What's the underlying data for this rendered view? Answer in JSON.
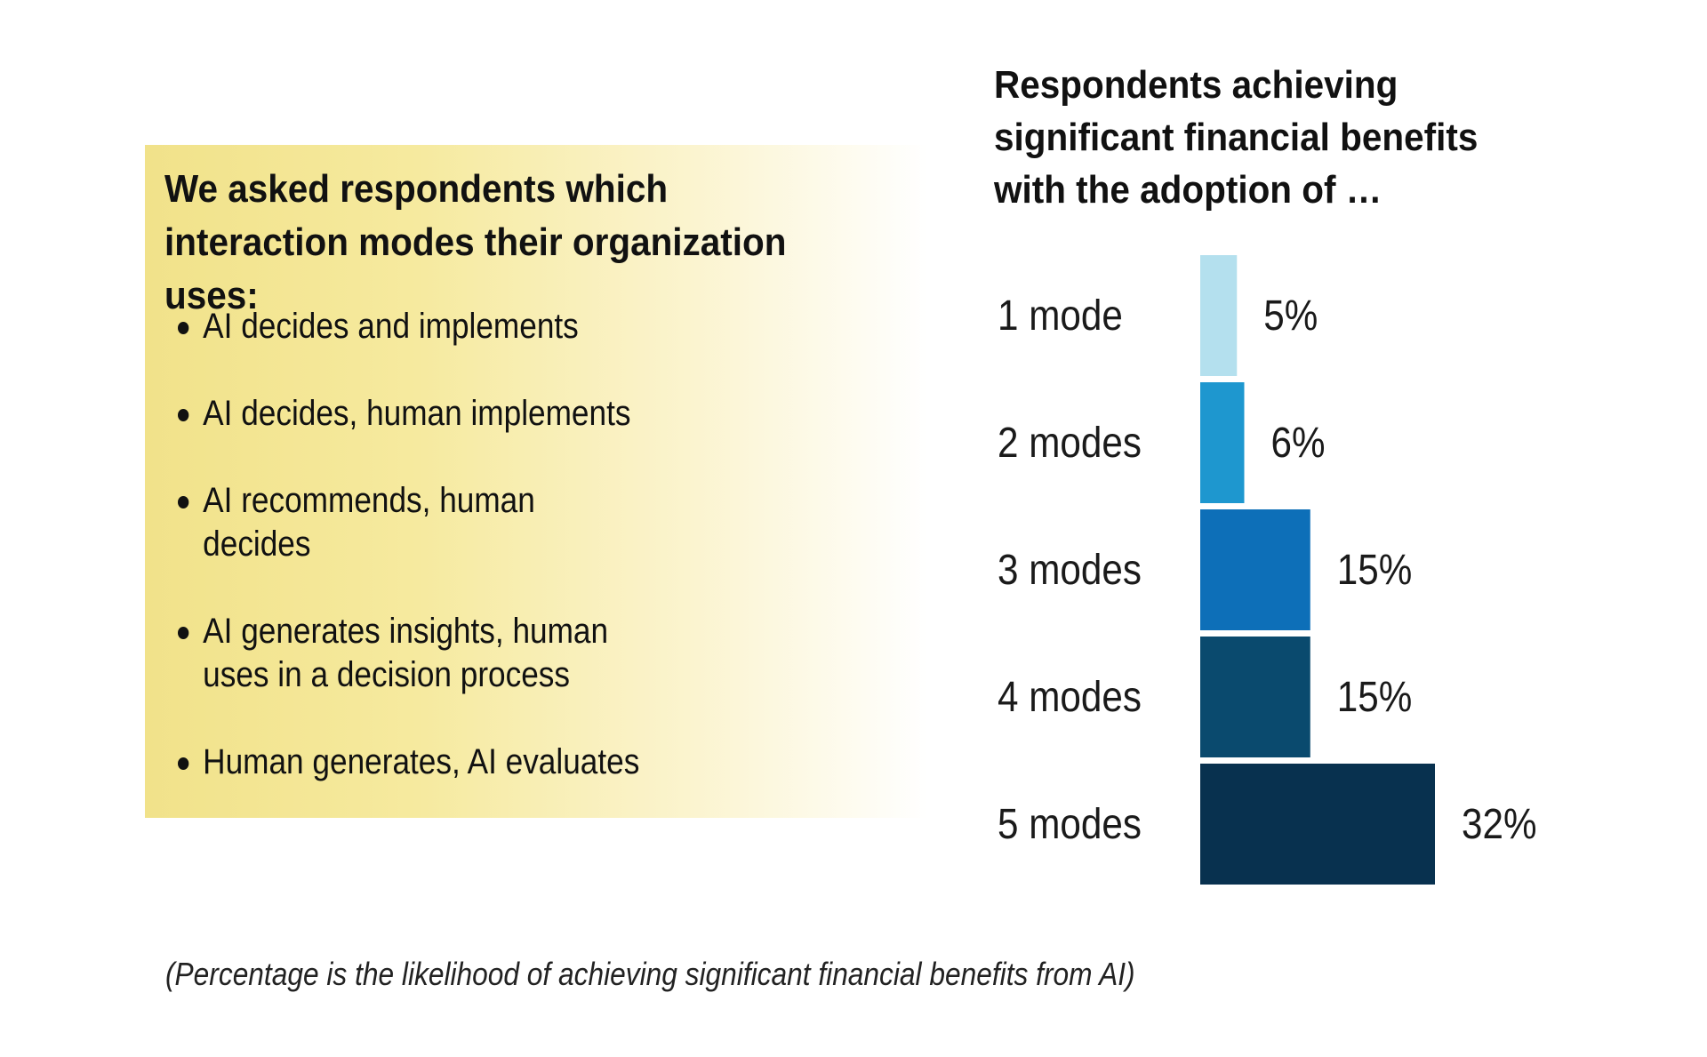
{
  "panel": {
    "title": "We asked respondents which interaction modes their organization uses:",
    "bullets": [
      "AI decides and implements",
      "AI decides, human implements",
      "AI recommends, human decides",
      "AI generates insights, human uses in a decision process",
      "Human generates, AI evaluates"
    ]
  },
  "footnote": "(Percentage is the likelihood of achieving significant financial benefits from AI)",
  "chart_data": {
    "type": "bar",
    "orientation": "horizontal",
    "title": "Respondents achieving significant financial benefits with the adoption of …",
    "categories": [
      "1 mode",
      "2 modes",
      "3 modes",
      "4 modes",
      "5 modes"
    ],
    "values": [
      5,
      6,
      15,
      15,
      32
    ],
    "value_labels": [
      "5%",
      "6%",
      "15%",
      "15%",
      "32%"
    ],
    "colors": [
      "#b4e0ee",
      "#1e97cf",
      "#0d6fb8",
      "#0a4a6e",
      "#08314f"
    ],
    "xlim": [
      0,
      32
    ],
    "grid": false,
    "legend": "none"
  }
}
